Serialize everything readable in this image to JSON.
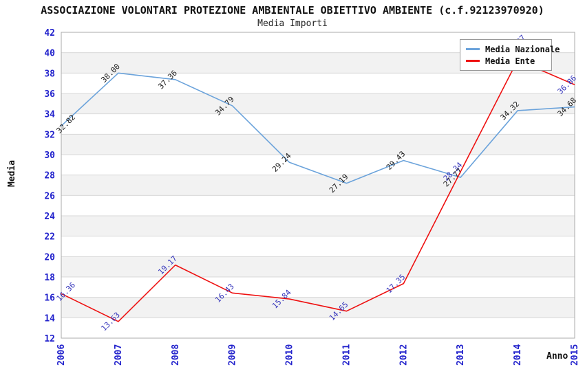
{
  "chart_data": {
    "type": "line",
    "title": "ASSOCIAZIONE VOLONTARI PROTEZIONE AMBIENTALE OBIETTIVO AMBIENTE (c.f.92123970920)",
    "subtitle": "Media Importi",
    "xlabel": "Anno",
    "ylabel": "Media",
    "categories": [
      "2006",
      "2007",
      "2008",
      "2009",
      "2010",
      "2011",
      "2012",
      "2013",
      "2014",
      "2015"
    ],
    "ylim": [
      12,
      42
    ],
    "ytick_step": 2,
    "grid": "horizontal-bands",
    "legend_position": "top-right",
    "series": [
      {
        "name": "Media Nazionale",
        "color": "#6BA3DB",
        "label_color": "#1A1A1A",
        "values": [
          32.82,
          38.0,
          37.36,
          34.79,
          29.24,
          27.19,
          29.43,
          27.77,
          34.32,
          34.68
        ],
        "labels": [
          "32.82",
          "38.00",
          "37.36",
          "34.79",
          "29.24",
          "27.19",
          "29.43",
          "27.77",
          "34.32",
          "34.68"
        ]
      },
      {
        "name": "Media Ente",
        "color": "#EE1111",
        "label_color": "#3333BB",
        "values": [
          16.36,
          13.63,
          19.17,
          16.43,
          15.84,
          14.65,
          17.35,
          28.34,
          39.27,
          36.86
        ],
        "labels": [
          "16.36",
          "13.63",
          "19.17",
          "16.43",
          "15.84",
          "14.65",
          "17.35",
          "28.34",
          "39.27",
          "36.86"
        ]
      }
    ]
  },
  "colors": {
    "tick_label": "#2222CC",
    "grid_band": "#F2F2F2",
    "grid_line": "#D8D8D8",
    "plot_border": "#ABABAB",
    "plot_background": "#FFFFFF"
  }
}
